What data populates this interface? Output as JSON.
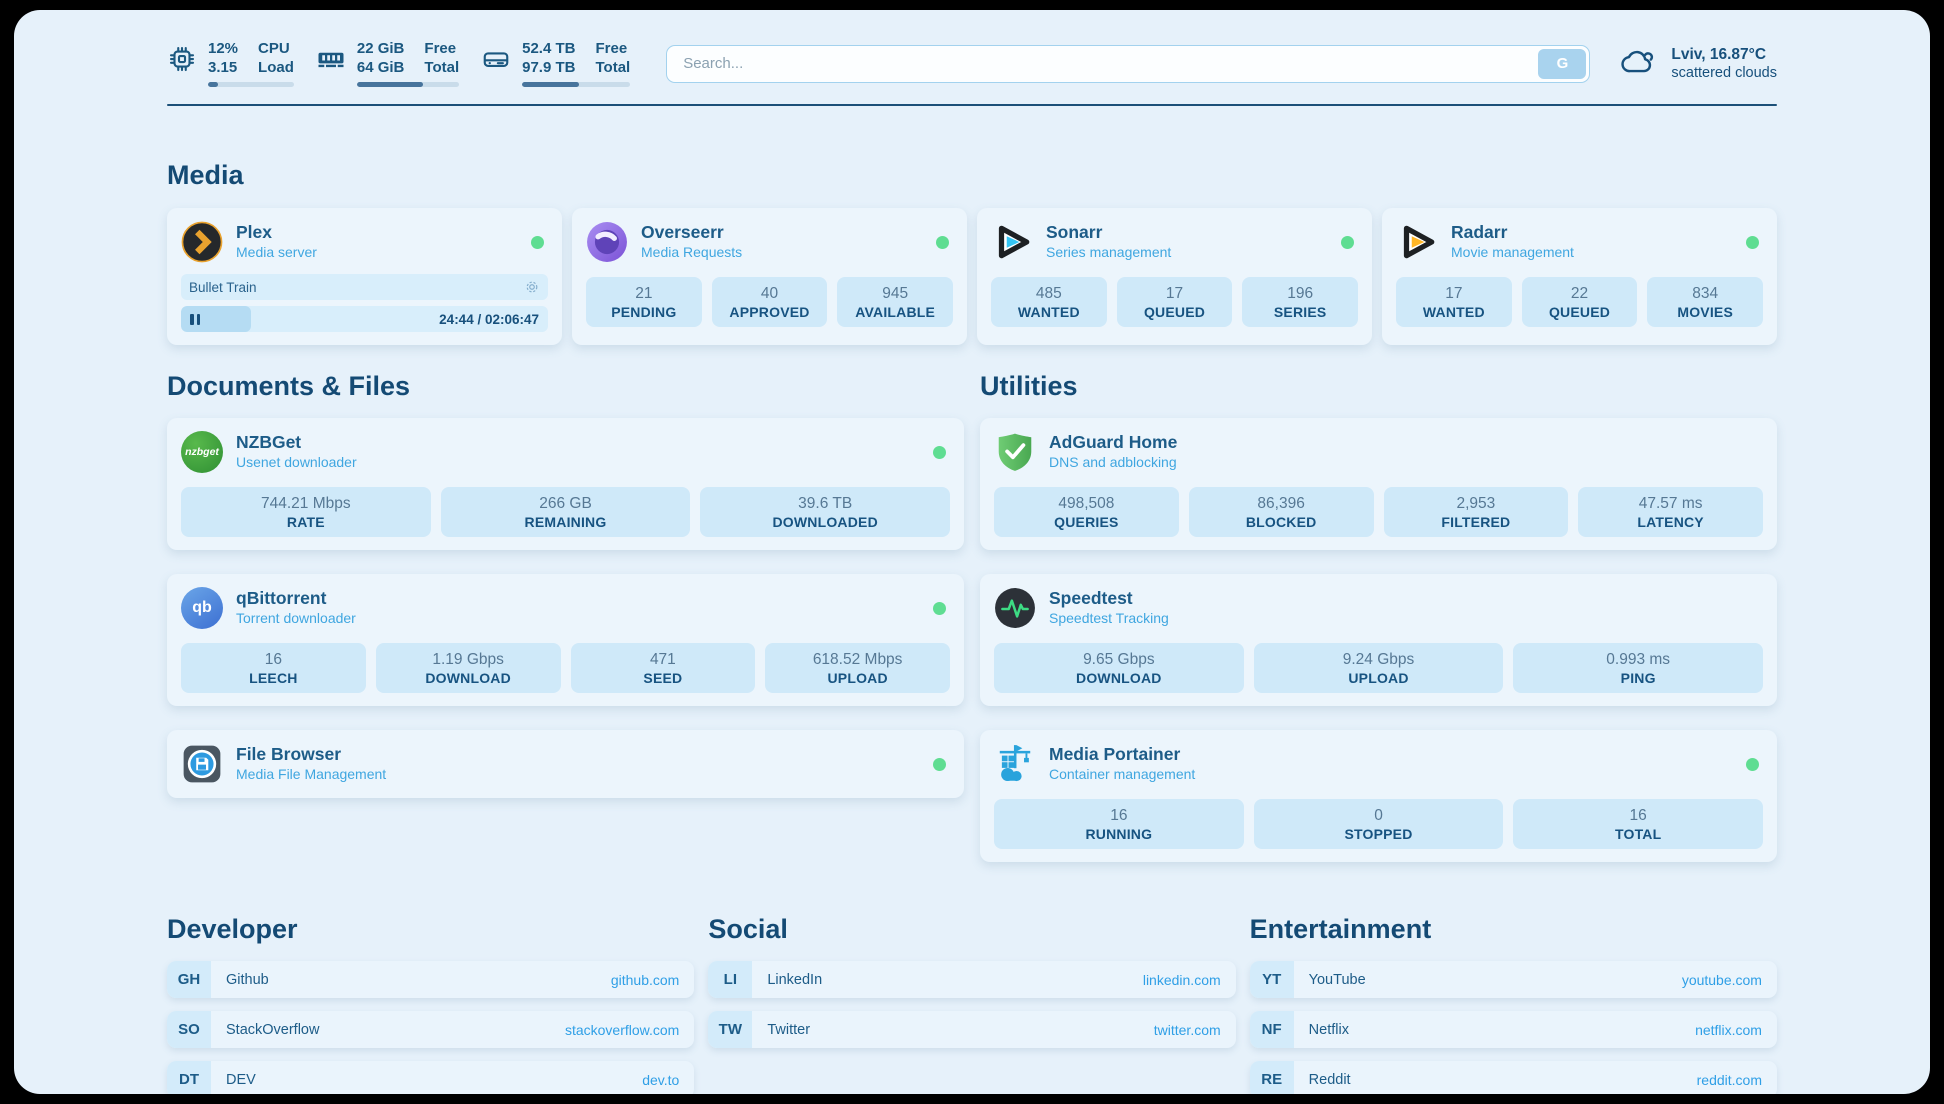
{
  "topbar": {
    "stats": [
      {
        "icon": "cpu-icon",
        "rows": [
          {
            "value": "12%",
            "label": "CPU"
          },
          {
            "value": "3.15",
            "label": "Load"
          }
        ],
        "progress_pct": 12
      },
      {
        "icon": "memory-icon",
        "rows": [
          {
            "value": "22 GiB",
            "label": "Free"
          },
          {
            "value": "64 GiB",
            "label": "Total"
          }
        ],
        "progress_pct": 65
      },
      {
        "icon": "disk-icon",
        "rows": [
          {
            "value": "52.4 TB",
            "label": "Free"
          },
          {
            "value": "97.9 TB",
            "label": "Total"
          }
        ],
        "progress_pct": 53
      }
    ],
    "search": {
      "placeholder": "Search...",
      "button_label": "G"
    },
    "weather": {
      "location": "Lviv, 16.87°C",
      "condition": "scattered clouds"
    }
  },
  "sections": {
    "media": {
      "title": "Media",
      "apps": [
        {
          "name": "Plex",
          "subtitle": "Media server",
          "online": true,
          "now_playing": {
            "title": "Bullet Train",
            "time_display": "24:44 / 02:06:47",
            "progress_pct": 19
          }
        },
        {
          "name": "Overseerr",
          "subtitle": "Media Requests",
          "online": true,
          "stats": [
            {
              "value": "21",
              "label": "PENDING"
            },
            {
              "value": "40",
              "label": "APPROVED"
            },
            {
              "value": "945",
              "label": "AVAILABLE"
            }
          ]
        },
        {
          "name": "Sonarr",
          "subtitle": "Series management",
          "online": true,
          "stats": [
            {
              "value": "485",
              "label": "WANTED"
            },
            {
              "value": "17",
              "label": "QUEUED"
            },
            {
              "value": "196",
              "label": "SERIES"
            }
          ]
        },
        {
          "name": "Radarr",
          "subtitle": "Movie management",
          "online": true,
          "stats": [
            {
              "value": "17",
              "label": "WANTED"
            },
            {
              "value": "22",
              "label": "QUEUED"
            },
            {
              "value": "834",
              "label": "MOVIES"
            }
          ]
        }
      ]
    },
    "documents": {
      "title": "Documents & Files",
      "apps": [
        {
          "name": "NZBGet",
          "subtitle": "Usenet downloader",
          "online": true,
          "stats": [
            {
              "value": "744.21 Mbps",
              "label": "RATE"
            },
            {
              "value": "266 GB",
              "label": "REMAINING"
            },
            {
              "value": "39.6 TB",
              "label": "DOWNLOADED"
            }
          ]
        },
        {
          "name": "qBittorrent",
          "subtitle": "Torrent downloader",
          "online": true,
          "stats": [
            {
              "value": "16",
              "label": "LEECH"
            },
            {
              "value": "1.19 Gbps",
              "label": "DOWNLOAD"
            },
            {
              "value": "471",
              "label": "SEED"
            },
            {
              "value": "618.52 Mbps",
              "label": "UPLOAD"
            }
          ]
        },
        {
          "name": "File Browser",
          "subtitle": "Media File Management",
          "online": true
        }
      ]
    },
    "utilities": {
      "title": "Utilities",
      "apps": [
        {
          "name": "AdGuard Home",
          "subtitle": "DNS and adblocking",
          "stats": [
            {
              "value": "498,508",
              "label": "QUERIES"
            },
            {
              "value": "86,396",
              "label": "BLOCKED"
            },
            {
              "value": "2,953",
              "label": "FILTERED"
            },
            {
              "value": "47.57 ms",
              "label": "LATENCY"
            }
          ]
        },
        {
          "name": "Speedtest",
          "subtitle": "Speedtest Tracking",
          "stats": [
            {
              "value": "9.65 Gbps",
              "label": "DOWNLOAD"
            },
            {
              "value": "9.24 Gbps",
              "label": "UPLOAD"
            },
            {
              "value": "0.993 ms",
              "label": "PING"
            }
          ]
        },
        {
          "name": "Media Portainer",
          "subtitle": "Container management",
          "online": true,
          "stats": [
            {
              "value": "16",
              "label": "RUNNING"
            },
            {
              "value": "0",
              "label": "STOPPED"
            },
            {
              "value": "16",
              "label": "TOTAL"
            }
          ]
        }
      ]
    },
    "bookmarks": [
      {
        "title": "Developer",
        "links": [
          {
            "abbr": "GH",
            "name": "Github",
            "url": "github.com"
          },
          {
            "abbr": "SO",
            "name": "StackOverflow",
            "url": "stackoverflow.com"
          },
          {
            "abbr": "DT",
            "name": "DEV",
            "url": "dev.to"
          }
        ]
      },
      {
        "title": "Social",
        "links": [
          {
            "abbr": "LI",
            "name": "LinkedIn",
            "url": "linkedin.com"
          },
          {
            "abbr": "TW",
            "name": "Twitter",
            "url": "twitter.com"
          }
        ]
      },
      {
        "title": "Entertainment",
        "links": [
          {
            "abbr": "YT",
            "name": "YouTube",
            "url": "youtube.com"
          },
          {
            "abbr": "NF",
            "name": "Netflix",
            "url": "netflix.com"
          },
          {
            "abbr": "RE",
            "name": "Reddit",
            "url": "reddit.com"
          }
        ]
      }
    ]
  },
  "colors": {
    "page_bg": "#e6f1fa",
    "card_bg": "#ecf5fc",
    "stat_box_bg": "#cfe9f9",
    "heading_text": "#144a74",
    "title_text": "#1d5c88",
    "subtitle_text": "#3fa6e0",
    "stat_value_text": "#567894",
    "stat_label_text": "#175381",
    "url_text": "#2f9fe6",
    "status_online": "#5fdd92",
    "accent_dark": "#17507c",
    "progress_fill": "#47749c",
    "plex_amber": "#e9a22e",
    "sonarr_cyan": "#35c5f4",
    "radarr_amber": "#ffb626",
    "nzbget_green": "#3fae3f",
    "qbittorrent_blue": "#4a85d8",
    "adguard_green": "#55bd5e",
    "speedtest_green": "#3ddc84",
    "portainer_blue": "#29a3dc",
    "overseerr_purple": "#8565dc",
    "filebrowser_blue": "#2e9ae0"
  }
}
